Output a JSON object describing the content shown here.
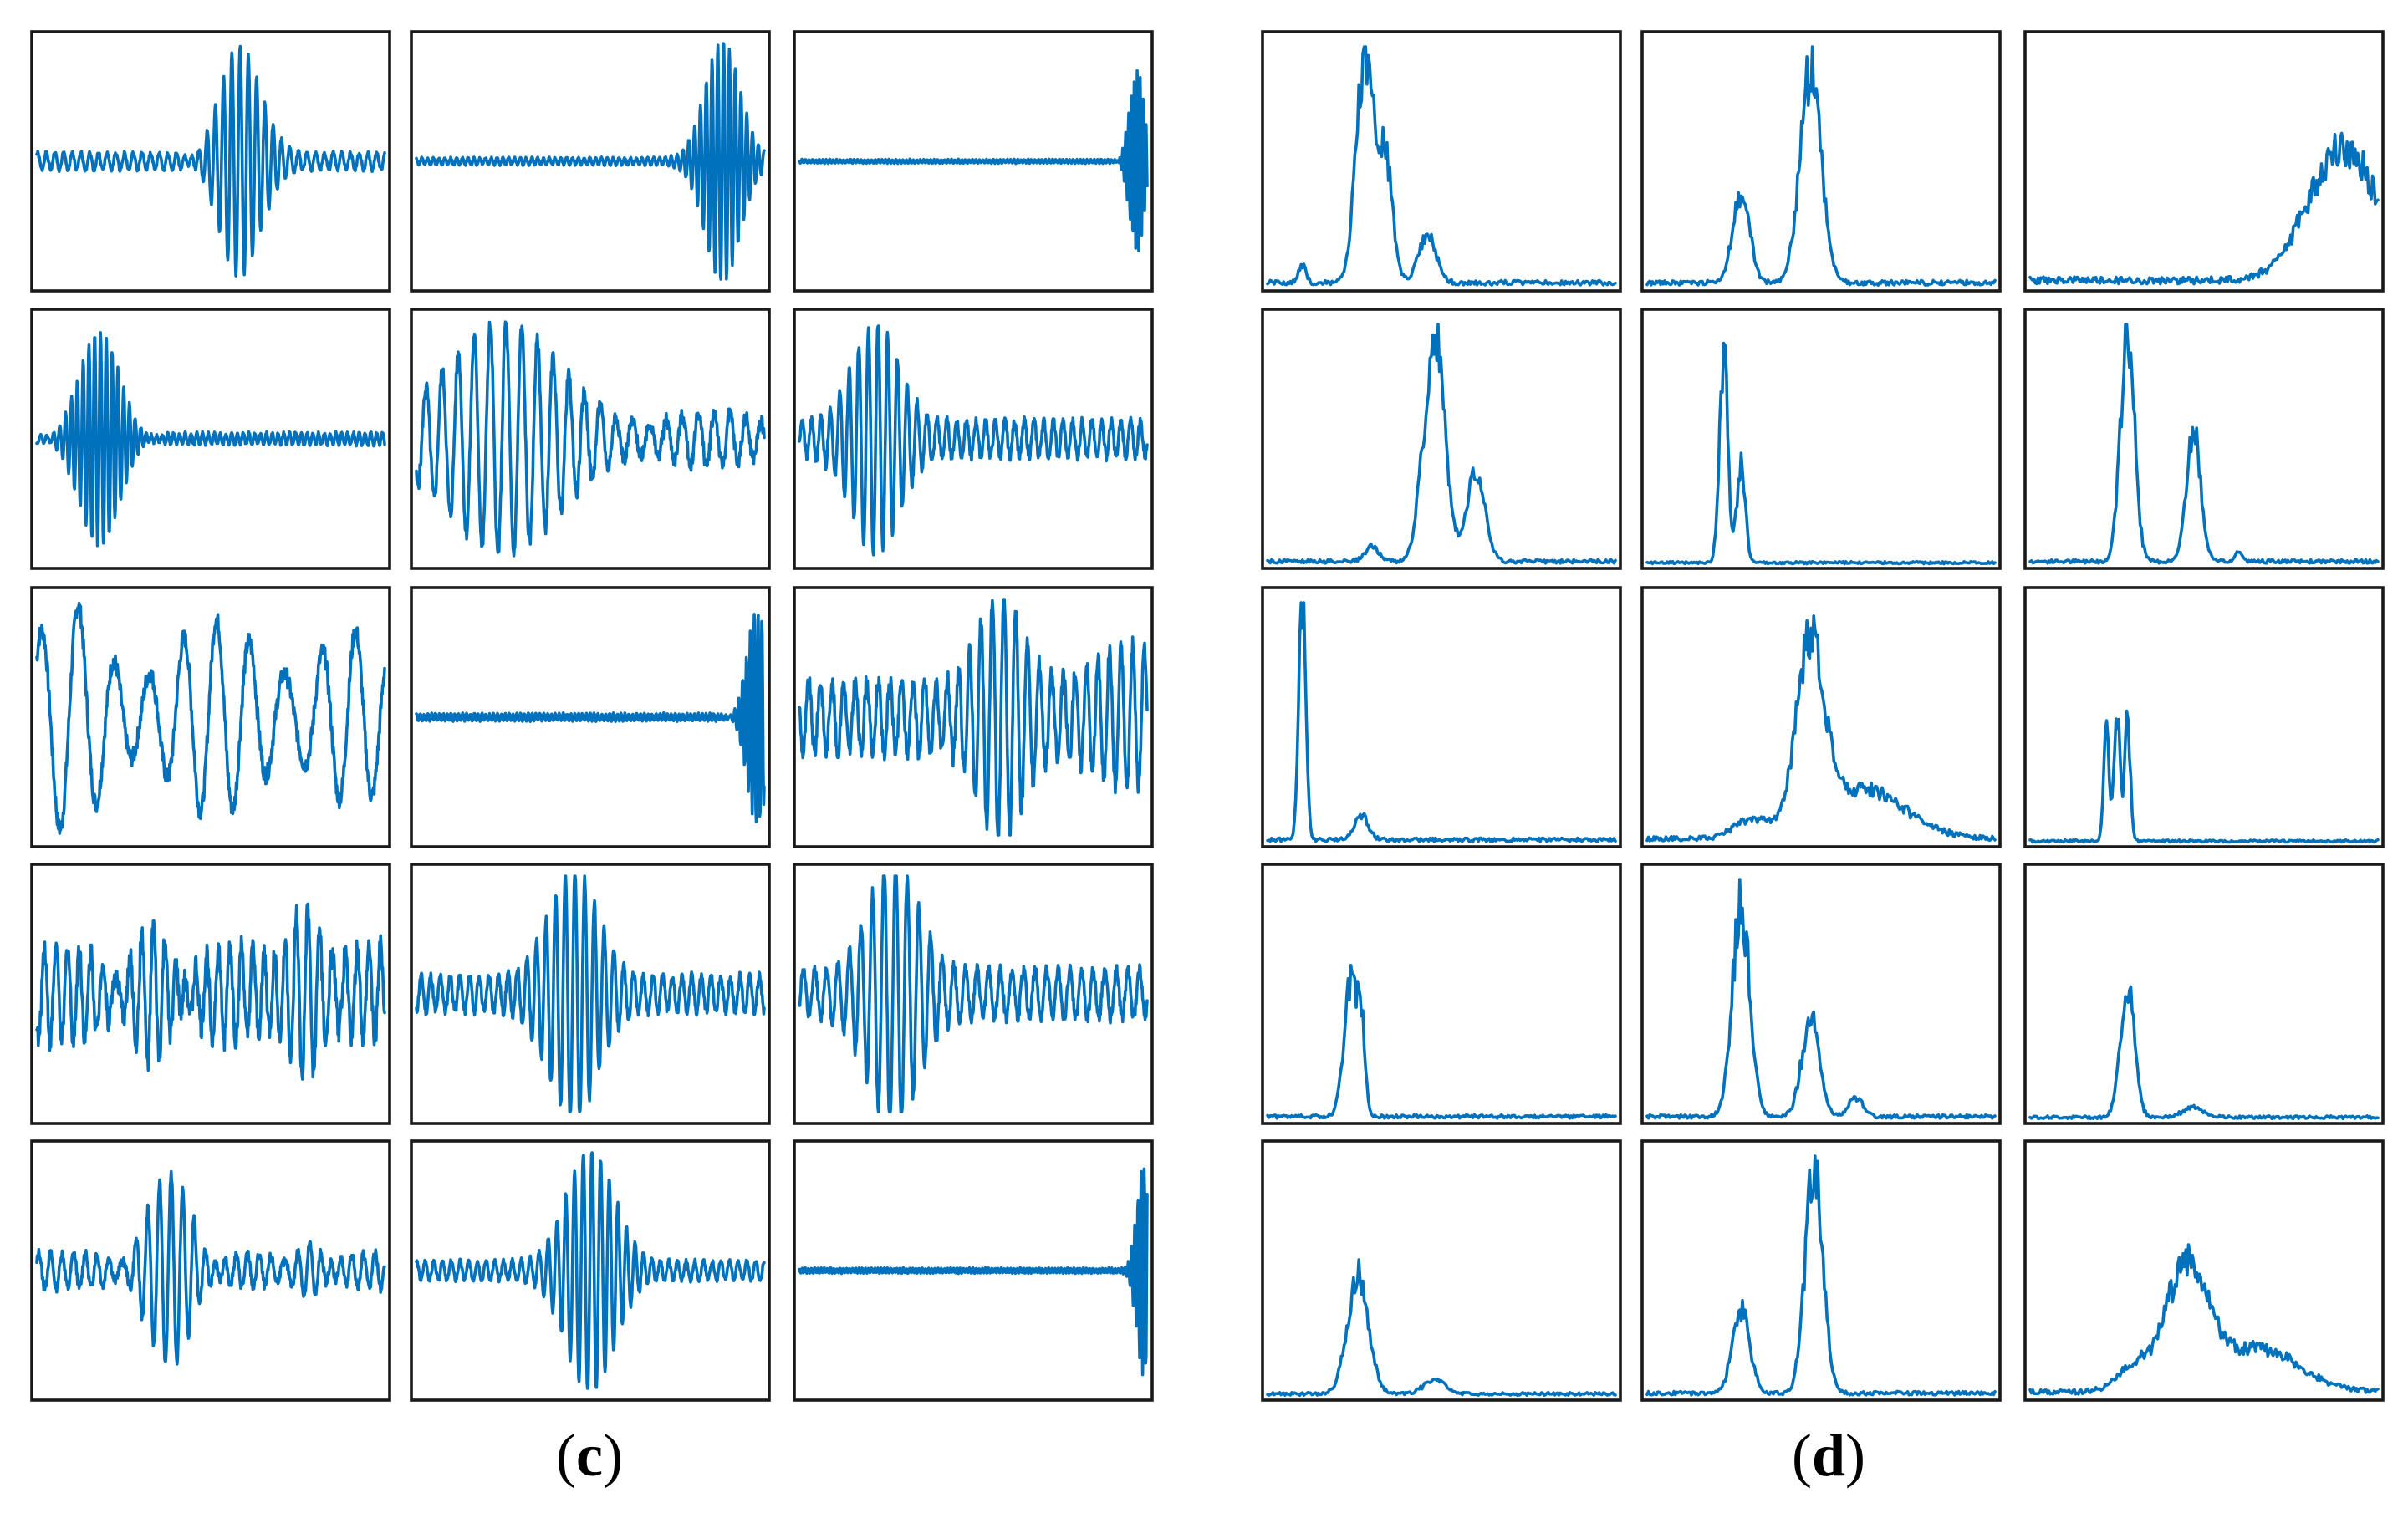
{
  "figure": {
    "caption_left_open": "(",
    "caption_left_letter": "c",
    "caption_left_close": ")",
    "caption_right_open": "(",
    "caption_right_letter": "d",
    "caption_right_close": ")"
  },
  "colors": {
    "trace": "#0072bd",
    "frame": "#1a1a1a"
  },
  "chart_data": [
    {
      "panel": "c",
      "type": "line",
      "rows": 5,
      "cols": 3,
      "grid": false,
      "axes_ticks": false,
      "x_range": [
        0,
        1
      ],
      "y_range": [
        -1,
        1
      ],
      "subplots": [
        {
          "bursts": [
            [
              0.58,
              0.06,
              1.0,
              42
            ]
          ],
          "noise": 0.07,
          "freq": 40,
          "seed": 1
        },
        {
          "bursts": [
            [
              0.88,
              0.05,
              1.0,
              60
            ]
          ],
          "noise": 0.03,
          "freq": 60,
          "seed": 2
        },
        {
          "bursts": [
            [
              0.97,
              0.02,
              0.8,
              120
            ]
          ],
          "noise": 0.015,
          "freq": 100,
          "seed": 3
        },
        {
          "bursts": [
            [
              0.18,
              0.06,
              0.95,
              60
            ]
          ],
          "noise": 0.05,
          "freq": 60,
          "seed": 4
        },
        {
          "bursts": [
            [
              0.25,
              0.16,
              0.95,
              22
            ],
            [
              0.85,
              0.2,
              0.45,
              22
            ]
          ],
          "noise": 0.25,
          "freq": 22,
          "seed": 5
        },
        {
          "bursts": [
            [
              0.22,
              0.07,
              0.9,
              36
            ]
          ],
          "noise": 0.15,
          "freq": 36,
          "seed": 6
        },
        {
          "bursts": [
            [
              0.1,
              0.09,
              0.7,
              9
            ],
            [
              0.5,
              0.12,
              0.55,
              11
            ],
            [
              0.9,
              0.1,
              0.45,
              11
            ]
          ],
          "noise": 0.3,
          "freq": 10,
          "seed": 7
        },
        {
          "bursts": [
            [
              0.98,
              0.03,
              0.95,
              90
            ]
          ],
          "noise": 0.03,
          "freq": 90,
          "seed": 8
        },
        {
          "bursts": [
            [
              0.58,
              0.07,
              0.95,
              30
            ],
            [
              0.95,
              0.1,
              0.35,
              30
            ]
          ],
          "noise": 0.3,
          "freq": 30,
          "seed": 9
        },
        {
          "bursts": [
            [
              0.33,
              0.07,
              0.95,
              30
            ],
            [
              0.77,
              0.06,
              0.9,
              30
            ]
          ],
          "noise": 0.4,
          "freq": 30,
          "seed": 10
        },
        {
          "bursts": [
            [
              0.45,
              0.07,
              0.95,
              36
            ]
          ],
          "noise": 0.15,
          "freq": 36,
          "seed": 11
        },
        {
          "bursts": [
            [
              0.27,
              0.07,
              0.95,
              30
            ]
          ],
          "noise": 0.2,
          "freq": 30,
          "seed": 12
        },
        {
          "bursts": [
            [
              0.38,
              0.07,
              0.95,
              30
            ],
            [
              0.78,
              0.05,
              0.35,
              30
            ]
          ],
          "noise": 0.15,
          "freq": 30,
          "seed": 13
        },
        {
          "bursts": [
            [
              0.5,
              0.07,
              1.0,
              40
            ]
          ],
          "noise": 0.08,
          "freq": 40,
          "seed": 14
        },
        {
          "bursts": [
            [
              0.99,
              0.02,
              0.9,
              110
            ]
          ],
          "noise": 0.02,
          "freq": 110,
          "seed": 15
        }
      ]
    },
    {
      "panel": "d",
      "type": "line",
      "rows": 5,
      "cols": 3,
      "grid": false,
      "axes_ticks": false,
      "x_range": [
        0,
        1
      ],
      "y_range": [
        0,
        1
      ],
      "subplots": [
        {
          "peaks": [
            [
              0.28,
              0.025,
              0.95
            ],
            [
              0.34,
              0.02,
              0.5
            ],
            [
              0.46,
              0.025,
              0.2
            ],
            [
              0.1,
              0.01,
              0.08
            ]
          ],
          "noise": 0.02,
          "seed": 21
        },
        {
          "peaks": [
            [
              0.27,
              0.025,
              0.35
            ],
            [
              0.47,
              0.03,
              0.88
            ]
          ],
          "noise": 0.02,
          "seed": 22
        },
        {
          "peaks": [
            [
              0.9,
              0.1,
              0.55
            ]
          ],
          "noise": 0.03,
          "seed": 23
        },
        {
          "peaks": [
            [
              0.48,
              0.03,
              0.95
            ],
            [
              0.6,
              0.025,
              0.38
            ],
            [
              0.3,
              0.02,
              0.06
            ]
          ],
          "noise": 0.015,
          "seed": 24
        },
        {
          "peaks": [
            [
              0.22,
              0.012,
              0.85
            ],
            [
              0.27,
              0.012,
              0.4
            ]
          ],
          "noise": 0.01,
          "seed": 25
        },
        {
          "peaks": [
            [
              0.28,
              0.02,
              0.95
            ],
            [
              0.47,
              0.02,
              0.55
            ],
            [
              0.6,
              0.01,
              0.04
            ]
          ],
          "noise": 0.015,
          "seed": 26
        },
        {
          "peaks": [
            [
              0.1,
              0.01,
              0.98
            ],
            [
              0.27,
              0.02,
              0.1
            ]
          ],
          "noise": 0.015,
          "seed": 27
        },
        {
          "peaks": [
            [
              0.47,
              0.04,
              0.75
            ],
            [
              0.62,
              0.12,
              0.2
            ],
            [
              0.3,
              0.05,
              0.08
            ]
          ],
          "noise": 0.02,
          "seed": 28
        },
        {
          "peaks": [
            [
              0.25,
              0.008,
              0.55
            ],
            [
              0.22,
              0.008,
              0.45
            ],
            [
              0.28,
              0.008,
              0.5
            ]
          ],
          "noise": 0.01,
          "seed": 29
        },
        {
          "peaks": [
            [
              0.24,
              0.02,
              0.55
            ],
            [
              0.27,
              0.01,
              0.3
            ]
          ],
          "noise": 0.015,
          "seed": 30
        },
        {
          "peaks": [
            [
              0.27,
              0.025,
              0.88
            ],
            [
              0.47,
              0.025,
              0.4
            ],
            [
              0.6,
              0.02,
              0.08
            ]
          ],
          "noise": 0.015,
          "seed": 31
        },
        {
          "peaks": [
            [
              0.28,
              0.02,
              0.55
            ],
            [
              0.47,
              0.03,
              0.04
            ]
          ],
          "noise": 0.012,
          "seed": 32
        },
        {
          "peaks": [
            [
              0.26,
              0.03,
              0.5
            ],
            [
              0.48,
              0.03,
              0.06
            ]
          ],
          "noise": 0.012,
          "seed": 33
        },
        {
          "peaks": [
            [
              0.27,
              0.025,
              0.35
            ],
            [
              0.48,
              0.025,
              0.95
            ]
          ],
          "noise": 0.015,
          "seed": 34
        },
        {
          "peaks": [
            [
              0.45,
              0.06,
              0.5
            ],
            [
              0.65,
              0.12,
              0.18
            ],
            [
              0.3,
              0.05,
              0.1
            ]
          ],
          "noise": 0.02,
          "seed": 35
        }
      ]
    }
  ]
}
